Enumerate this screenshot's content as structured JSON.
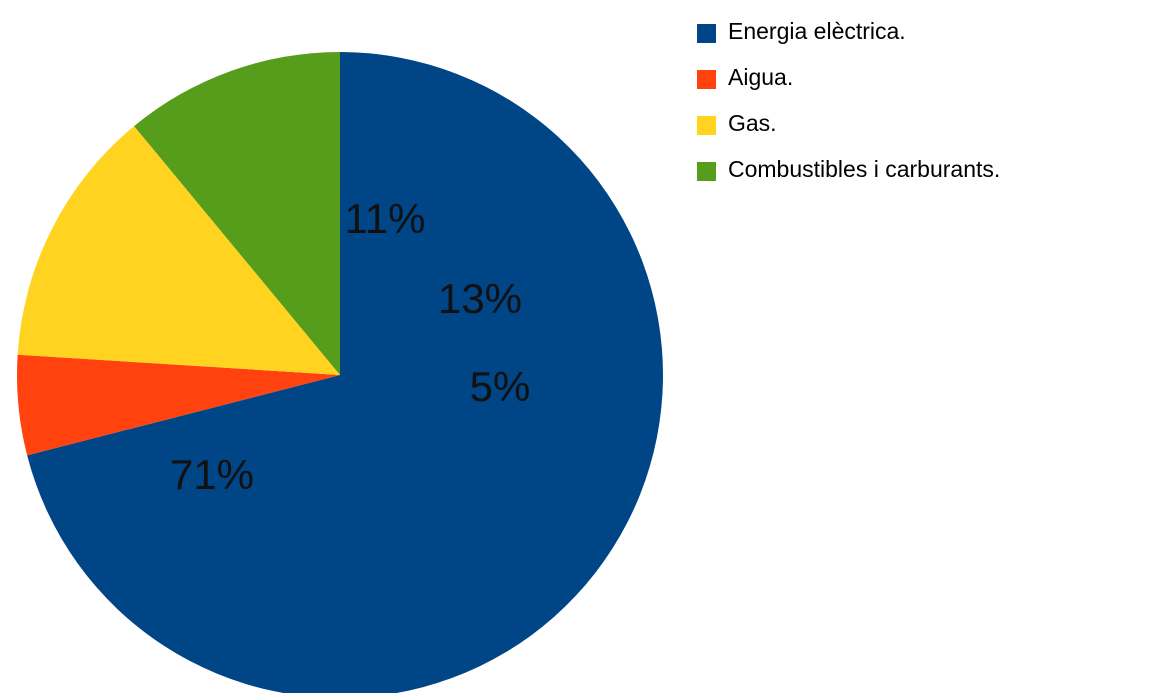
{
  "chart_data": {
    "type": "pie",
    "title": "",
    "categories": [
      "Energia elèctrica.",
      "Aigua.",
      "Gas.",
      "Combustibles i carburants."
    ],
    "values": [
      71,
      5,
      13,
      11
    ],
    "labels": [
      "71%",
      "5%",
      "13%",
      "11%"
    ],
    "colors": [
      "#004586",
      "#ff420e",
      "#ffd320",
      "#579d1c"
    ],
    "legend_position": "top-right",
    "start_angle": "top, clockwise"
  }
}
